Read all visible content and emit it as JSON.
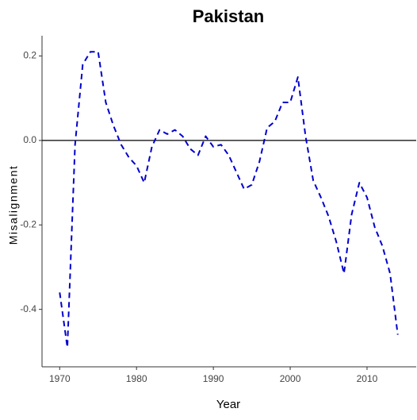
{
  "chart_data": {
    "type": "line",
    "title": "Pakistan",
    "xlabel": "Year",
    "ylabel": "Misalignment",
    "x": [
      1970,
      1971,
      1972,
      1973,
      1974,
      1975,
      1976,
      1977,
      1978,
      1979,
      1980,
      1981,
      1982,
      1983,
      1984,
      1985,
      1986,
      1987,
      1988,
      1989,
      1990,
      1991,
      1992,
      1993,
      1994,
      1995,
      1996,
      1997,
      1998,
      1999,
      2000,
      2001,
      2002,
      2003,
      2004,
      2005,
      2006,
      2007,
      2008,
      2009,
      2010,
      2011,
      2012,
      2013,
      2014
    ],
    "series": [
      {
        "name": "Misalignment",
        "color": "#0000cc",
        "values": [
          -0.36,
          -0.49,
          -0.01,
          0.18,
          0.21,
          0.21,
          0.09,
          0.035,
          -0.01,
          -0.04,
          -0.06,
          -0.1,
          -0.015,
          0.025,
          0.015,
          0.025,
          0.01,
          -0.02,
          -0.035,
          0.01,
          -0.015,
          -0.01,
          -0.035,
          -0.075,
          -0.115,
          -0.105,
          -0.05,
          0.03,
          0.045,
          0.09,
          0.09,
          0.15,
          0.01,
          -0.095,
          -0.135,
          -0.18,
          -0.24,
          -0.315,
          -0.175,
          -0.1,
          -0.135,
          -0.205,
          -0.25,
          -0.315,
          -0.46
        ]
      }
    ],
    "xlim": [
      1967.7,
      2016.4
    ],
    "xticks": [
      1970,
      1980,
      1990,
      2000,
      2010
    ],
    "ylim": [
      -0.536,
      0.248
    ],
    "yticks": [
      -0.4,
      -0.2,
      {
        "value": 0,
        "label": "0.0"
      },
      0.2
    ],
    "hline": 0,
    "grid": false
  }
}
